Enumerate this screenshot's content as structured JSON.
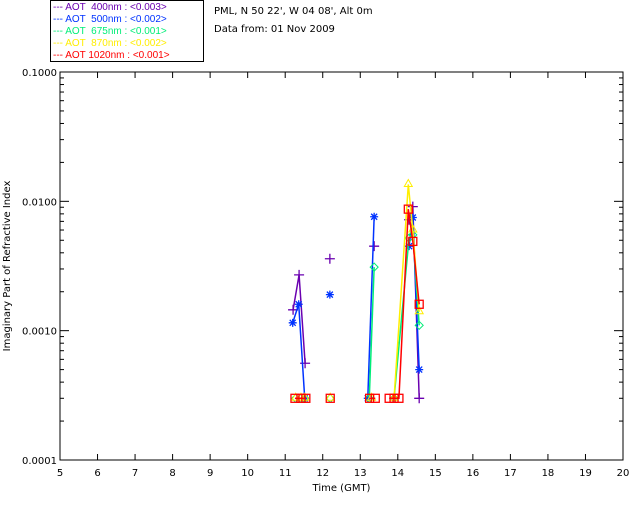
{
  "header": {
    "site": "PML, N 50 22', W 04 08', Alt 0m",
    "date": "Data from: 01 Nov 2009"
  },
  "chart_data": {
    "type": "scatter",
    "xlabel": "Time (GMT)",
    "ylabel": "Imaginary Part of Refractive Index",
    "xlim": [
      5,
      20
    ],
    "ylim": [
      0.0001,
      0.1
    ],
    "yscale": "log",
    "xticks": [
      "5",
      "6",
      "7",
      "8",
      "9",
      "10",
      "11",
      "12",
      "13",
      "14",
      "15",
      "16",
      "17",
      "18",
      "19",
      "20"
    ],
    "yticks": [
      {
        "v": 0.0001,
        "label": "0.0001"
      },
      {
        "v": 0.001,
        "label": "0.0010"
      },
      {
        "v": 0.01,
        "label": "0.0100"
      },
      {
        "v": 0.1,
        "label": "0.1000"
      }
    ],
    "series": [
      {
        "name": "AOT  400nm : <0.003>",
        "color": "#6a00b0",
        "marker": "plus",
        "points": [
          [
            11.21,
            0.00145
          ],
          [
            11.37,
            0.0027
          ],
          [
            11.53,
            0.00056
          ],
          null,
          [
            12.19,
            0.0036
          ],
          null,
          [
            13.37,
            0.0045
          ],
          null,
          [
            14.3,
            0.0072
          ],
          [
            14.4,
            0.0091
          ],
          [
            14.57,
            0.0003
          ]
        ]
      },
      {
        "name": "AOT  500nm : <0.002>",
        "color": "#0033ff",
        "marker": "star",
        "points": [
          [
            11.2,
            0.00115
          ],
          [
            11.36,
            0.0016
          ],
          [
            11.52,
            0.0003
          ],
          null,
          [
            12.19,
            0.0019
          ],
          null,
          [
            13.2,
            0.0003
          ],
          [
            13.37,
            0.0076
          ],
          null,
          [
            14.3,
            0.0045
          ],
          [
            14.4,
            0.0075
          ],
          [
            14.57,
            0.0005
          ]
        ]
      },
      {
        "name": "AOT  675nm : <0.001>",
        "color": "#00ee77",
        "marker": "diamond",
        "points": [
          [
            11.28,
            0.0003
          ],
          [
            11.42,
            0.0003
          ],
          [
            11.52,
            0.0003
          ],
          null,
          [
            12.2,
            0.0003
          ],
          null,
          [
            13.24,
            0.0003
          ],
          [
            13.37,
            0.0031
          ],
          null,
          [
            13.9,
            0.0003
          ],
          [
            14.3,
            0.0052
          ],
          [
            14.4,
            0.0055
          ],
          [
            14.57,
            0.0011
          ]
        ]
      },
      {
        "name": "AOT  870nm : <0.002>",
        "color": "#ffee00",
        "marker": "triangle",
        "points": [
          [
            11.28,
            0.0003
          ],
          [
            11.42,
            0.0003
          ],
          [
            11.52,
            0.0003
          ],
          null,
          [
            12.2,
            0.0003
          ],
          null,
          [
            13.3,
            0.0003
          ],
          null,
          [
            13.9,
            0.0003
          ],
          [
            14.28,
            0.0135
          ],
          [
            14.4,
            0.006
          ],
          [
            14.57,
            0.0014
          ]
        ]
      },
      {
        "name": "AOT 1020nm : <0.001>",
        "color": "#ff0000",
        "marker": "square",
        "points": [
          [
            11.26,
            0.0003
          ],
          [
            11.42,
            0.0003
          ],
          [
            11.55,
            0.0003
          ],
          null,
          [
            12.2,
            0.0003
          ],
          null,
          [
            13.25,
            0.0003
          ],
          [
            13.4,
            0.0003
          ],
          null,
          [
            13.77,
            0.0003
          ],
          [
            13.9,
            0.0003
          ],
          [
            14.03,
            0.0003
          ],
          [
            14.28,
            0.0087
          ],
          [
            14.4,
            0.0049
          ],
          [
            14.57,
            0.0016
          ]
        ]
      }
    ]
  }
}
